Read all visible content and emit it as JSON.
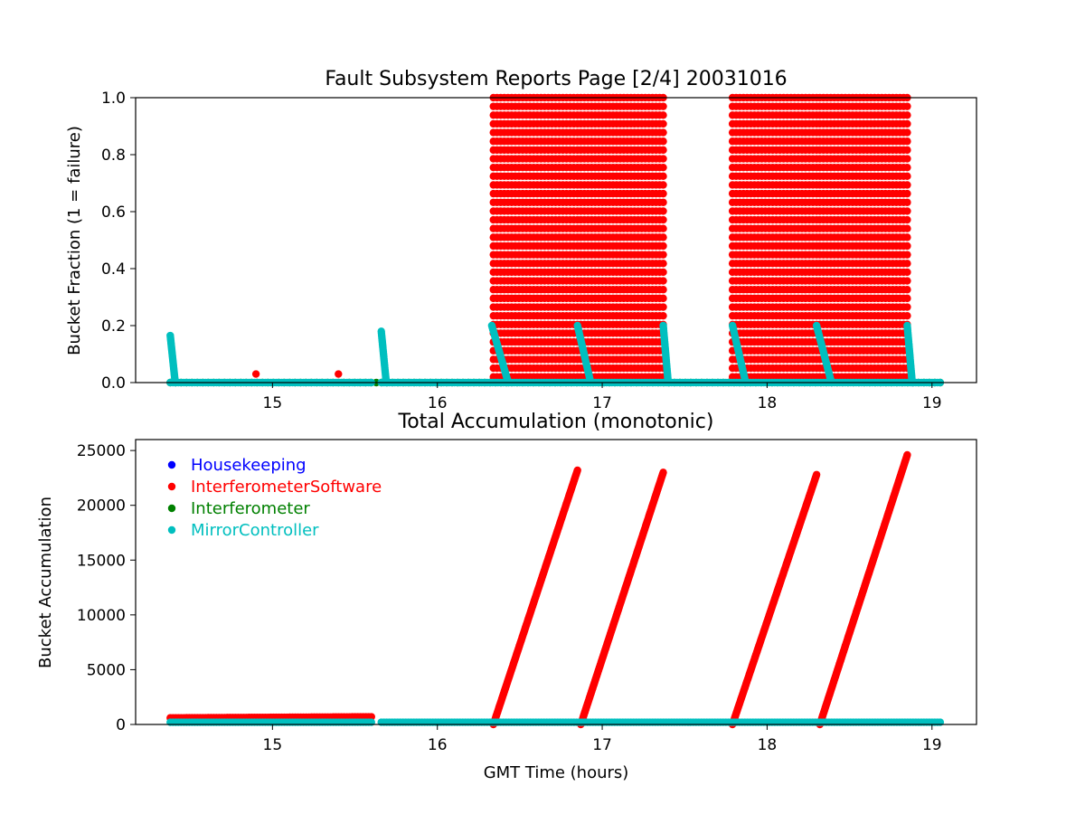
{
  "chart_data": [
    {
      "type": "scatter",
      "title": "Fault Subsystem Reports Page [2/4] 20031016",
      "xlabel": "",
      "ylabel": "Bucket Fraction (1 = failure)",
      "xlim": [
        14.17,
        19.27
      ],
      "ylim": [
        0,
        1.0
      ],
      "x_ticks": [
        "15",
        "16",
        "17",
        "18",
        "19"
      ],
      "y_ticks": [
        "0.0",
        "0.2",
        "0.4",
        "0.6",
        "0.8",
        "1.0"
      ],
      "grid": false,
      "series": [
        {
          "name": "InterferometerSoftware",
          "color": "#ff0000",
          "blocks": [
            {
              "x": [
                16.34,
                16.85
              ],
              "y": [
                0.02,
                1.0
              ]
            },
            {
              "x": [
                16.87,
                17.37
              ],
              "y": [
                0.02,
                1.0
              ]
            },
            {
              "x": [
                17.79,
                18.3
              ],
              "y": [
                0.02,
                1.0
              ]
            },
            {
              "x": [
                18.32,
                18.85
              ],
              "y": [
                0.02,
                1.0
              ]
            }
          ],
          "points": [
            {
              "x": 14.9,
              "y": 0.03
            },
            {
              "x": 15.4,
              "y": 0.03
            }
          ]
        },
        {
          "name": "MirrorController",
          "color": "#00bfbf",
          "ramps": [
            {
              "x": [
                14.38,
                14.41
              ],
              "y": [
                0.165,
                0.0
              ]
            },
            {
              "x": [
                15.66,
                15.69
              ],
              "y": [
                0.18,
                0.0
              ]
            },
            {
              "x": [
                16.33,
                16.43
              ],
              "y": [
                0.2,
                0.0
              ]
            },
            {
              "x": [
                16.85,
                16.93
              ],
              "y": [
                0.2,
                0.0
              ]
            },
            {
              "x": [
                17.37,
                17.4
              ],
              "y": [
                0.2,
                0.0
              ]
            },
            {
              "x": [
                17.79,
                17.87
              ],
              "y": [
                0.2,
                0.0
              ]
            },
            {
              "x": [
                18.3,
                18.39
              ],
              "y": [
                0.2,
                0.0
              ]
            },
            {
              "x": [
                18.85,
                18.88
              ],
              "y": [
                0.2,
                0.0
              ]
            }
          ],
          "baseline": {
            "x": [
              14.38,
              19.05
            ],
            "gap": [
              15.6,
              15.66
            ],
            "y": 0.0
          }
        },
        {
          "name": "Interferometer",
          "color": "#008000",
          "baseline": {
            "x": [
              14.38,
              19.05
            ],
            "y": 0.0
          }
        }
      ]
    },
    {
      "type": "scatter",
      "title": "Total Accumulation (monotonic)",
      "xlabel": "GMT Time (hours)",
      "ylabel": "Bucket Accumulation",
      "xlim": [
        14.17,
        19.27
      ],
      "ylim": [
        0,
        26000
      ],
      "x_ticks": [
        "15",
        "16",
        "17",
        "18",
        "19"
      ],
      "y_ticks": [
        "0",
        "5000",
        "10000",
        "15000",
        "20000",
        "25000"
      ],
      "grid": false,
      "legend": {
        "placement": "upper-left",
        "entries": [
          {
            "name": "Housekeeping",
            "color": "#0000ff"
          },
          {
            "name": "InterferometerSoftware",
            "color": "#ff0000"
          },
          {
            "name": "Interferometer",
            "color": "#008000"
          },
          {
            "name": "MirrorController",
            "color": "#00bfbf"
          }
        ]
      },
      "series": [
        {
          "name": "InterferometerSoftware",
          "color": "#ff0000",
          "flat": {
            "x": [
              14.38,
              15.6
            ],
            "y": [
              600,
              700
            ]
          },
          "ramps": [
            {
              "x": [
                16.34,
                16.85
              ],
              "y": [
                0,
                23200
              ]
            },
            {
              "x": [
                16.87,
                17.37
              ],
              "y": [
                0,
                23000
              ]
            },
            {
              "x": [
                17.79,
                18.3
              ],
              "y": [
                0,
                22800
              ]
            },
            {
              "x": [
                18.32,
                18.85
              ],
              "y": [
                0,
                24600
              ]
            }
          ]
        },
        {
          "name": "MirrorController",
          "color": "#00bfbf",
          "segments": [
            {
              "x": [
                14.38,
                15.6
              ],
              "y": 200
            },
            {
              "x": [
                15.66,
                19.05
              ],
              "y": 200
            }
          ]
        }
      ]
    }
  ]
}
